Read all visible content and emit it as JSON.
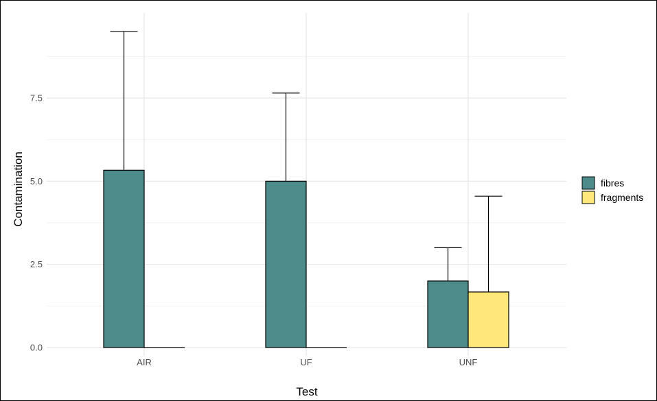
{
  "chart_data": {
    "type": "bar",
    "title": "",
    "xlabel": "Test",
    "ylabel": "Contamination",
    "categories": [
      "AIR",
      "UF",
      "UNF"
    ],
    "series": [
      {
        "name": "fibres",
        "color": "#4e8b8b",
        "values": [
          5.33,
          5.0,
          2.0
        ],
        "error_upper": [
          9.5,
          7.65,
          3.0
        ]
      },
      {
        "name": "fragments",
        "color": "#ffe77a",
        "values": [
          0.0,
          0.0,
          1.67
        ],
        "error_upper": [
          0.0,
          0.0,
          4.55
        ]
      }
    ],
    "yticks": [
      "0.0",
      "2.5",
      "5.0",
      "7.5"
    ],
    "ytick_values": [
      0,
      2.5,
      5,
      7.5
    ],
    "ylim": [
      -0.3,
      10.0
    ],
    "grid": true,
    "legend_position": "right"
  }
}
